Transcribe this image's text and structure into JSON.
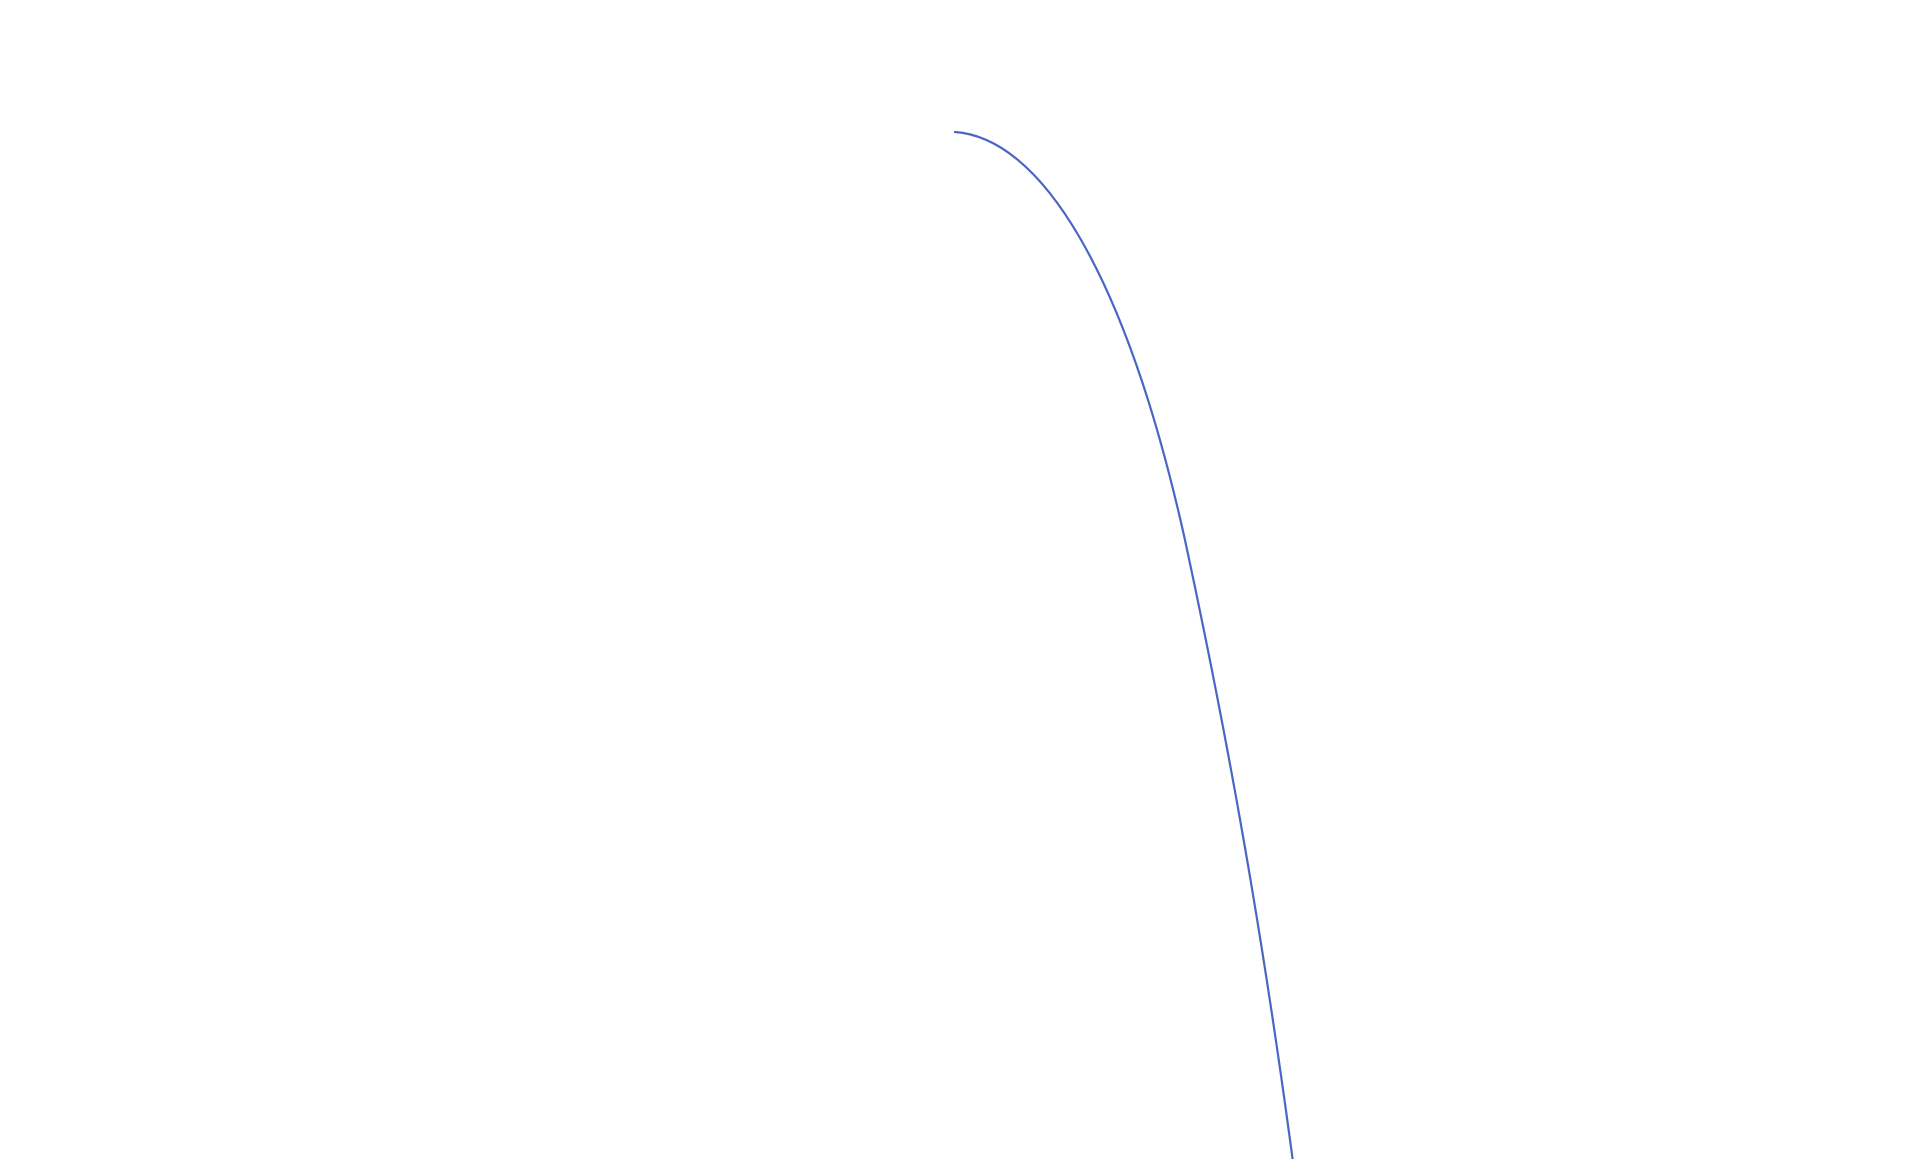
{
  "chart_data": {
    "type": "line",
    "title": "",
    "xlabel": "",
    "ylabel": "",
    "grid": false,
    "axes_visible": false,
    "legend": "none",
    "series": [
      {
        "color": "#4a66c4"
      }
    ]
  }
}
